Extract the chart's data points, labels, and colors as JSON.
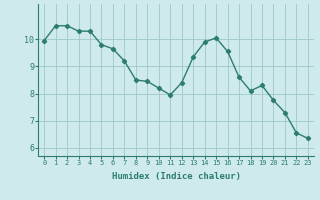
{
  "xlabel": "Humidex (Indice chaleur)",
  "x": [
    0,
    1,
    2,
    3,
    4,
    5,
    6,
    7,
    8,
    9,
    10,
    11,
    12,
    13,
    14,
    15,
    16,
    17,
    18,
    19,
    20,
    21,
    22,
    23
  ],
  "y": [
    9.95,
    10.5,
    10.5,
    10.3,
    10.3,
    9.8,
    9.65,
    9.2,
    8.5,
    8.45,
    8.2,
    7.95,
    8.4,
    9.35,
    9.9,
    10.05,
    9.55,
    8.6,
    8.1,
    8.3,
    7.75,
    7.3,
    6.55,
    6.35
  ],
  "ylim": [
    5.7,
    11.3
  ],
  "yticks": [
    6,
    7,
    8,
    9,
    10
  ],
  "line_color": "#2d7d6e",
  "marker": "D",
  "marker_size": 2.2,
  "bg_color": "#ceeaea",
  "grid_color": "#9dc8c8",
  "axis_color": "#2d7d6e",
  "label_color": "#2d7d6e",
  "font_family": "monospace"
}
